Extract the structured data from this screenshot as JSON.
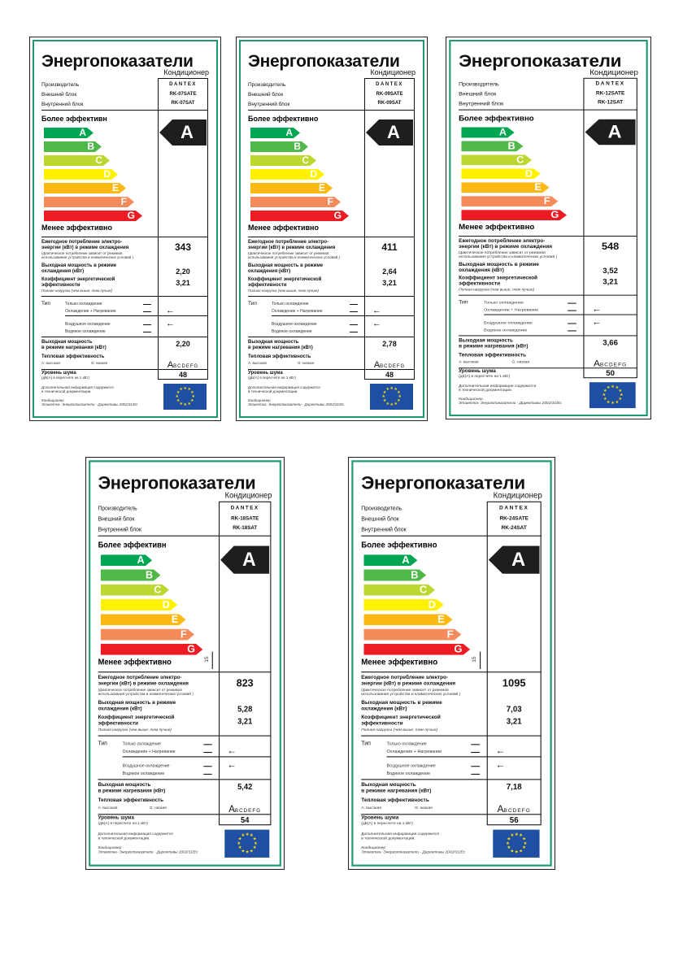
{
  "common": {
    "title": "Энергопоказатели",
    "subtitle": "Кондиционер",
    "manufacturer_label": "Производитель",
    "outdoor_label": "Внешний блок",
    "indoor_label": "Внутренний блок",
    "manufacturer": "DANTEX",
    "less_efficient": "Менее эффективно",
    "classes": [
      "A",
      "B",
      "C",
      "D",
      "E",
      "F",
      "G"
    ],
    "class_colors": [
      "#00a651",
      "#50b848",
      "#bed630",
      "#fff200",
      "#fdb913",
      "#f58a5b",
      "#ed1c24"
    ],
    "annual_label_1": "Ежегодное потребление электро-",
    "annual_label_2": "энергии  (кВт) в режиме охлаждения",
    "annual_note_1": "(фактическое потребление зависит от режимов",
    "annual_note_2": "использования устройства и климатических условий )",
    "cooling_label_1": "Выходная мощность в режиме",
    "cooling_label_2": "охлаждения  (кВт)",
    "eer_label_1": "Коэффициент энергетической",
    "eer_label_2": "эффективности",
    "eer_note": "Полная нагрузка (чем выше, тем лучше)",
    "type_label": "Тип",
    "type_cool_only": "Только охлаждение",
    "type_cool_heat": "Охлаждение + Нагревание",
    "type_air": "Воздушное охлаждение",
    "type_water": "Водяное охлаждение",
    "heating_label_1": "Выходная мощность",
    "heating_label_2": "в режиме нагревания (кВт)",
    "heat_eff_label": "Тепловая эффективность",
    "heat_eff_high": "А: высокая",
    "heat_eff_low": "G: низкая",
    "heat_eff_class": "A",
    "heat_eff_rest": "BCDEFG",
    "noise_label": "Уровень шума",
    "noise_note": "(дБ(А) в пересчете на 1 кВт)",
    "info_1": "Дополнительная информация содержится",
    "info_2": "в технической документации.",
    "footer_1": "Кондиционер",
    "footer_2": "Этикетка- Энергопоказатели - Директивы 2002/31/Ес",
    "eu_flag_icon": "eu-flag-icon",
    "frame_color": "#1a9a6e"
  },
  "labels": [
    {
      "more_efficient": "Более эффективн",
      "outdoor": "RK-07SATE",
      "indoor": "RK-07SAT",
      "energy_class": "A",
      "annual": "343",
      "cooling": "2,20",
      "eer": "3,21",
      "heating": "2,20",
      "noise": "48",
      "height_mark": ""
    },
    {
      "more_efficient": "Более эффективно",
      "outdoor": "RK-09SATE",
      "indoor": "RK-09SAT",
      "energy_class": "A",
      "annual": "411",
      "cooling": "2,64",
      "eer": "3,21",
      "heating": "2,78",
      "noise": "48",
      "height_mark": ""
    },
    {
      "more_efficient": "Более эффективно",
      "outdoor": "RK-12SATE",
      "indoor": "RK-12SAT",
      "energy_class": "A",
      "annual": "548",
      "cooling": "3,52",
      "eer": "3,21",
      "heating": "3,66",
      "noise": "50",
      "height_mark": ""
    },
    {
      "more_efficient": "Более эффективн",
      "outdoor": "RK-18SATE",
      "indoor": "RK-18SAT",
      "energy_class": "A",
      "annual": "823",
      "cooling": "5,28",
      "eer": "3,21",
      "heating": "5,42",
      "noise": "54",
      "height_mark": "15"
    },
    {
      "more_efficient": "Более эффективно",
      "outdoor": "RK-24SATE",
      "indoor": "RK-24SAT",
      "energy_class": "A",
      "annual": "1095",
      "cooling": "7,03",
      "eer": "3,21",
      "heating": "7,18",
      "noise": "56",
      "height_mark": "15"
    }
  ]
}
